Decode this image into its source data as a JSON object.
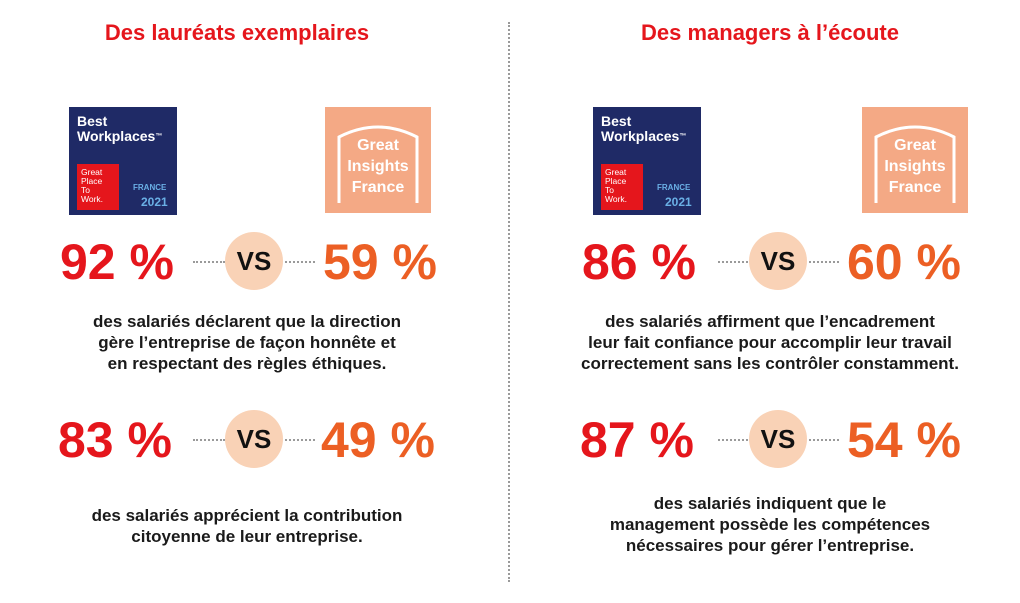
{
  "left": {
    "title": "Des lauréats exemplaires",
    "logo_bw": {
      "title_line1": "Best",
      "title_line2": "Workplaces",
      "tm": "™",
      "gptw_line1": "Great",
      "gptw_line2": "Place",
      "gptw_line3": "To",
      "gptw_line4": "Work.",
      "country": "FRANCE",
      "year": "2021"
    },
    "logo_gi": {
      "line1": "Great",
      "line2": "Insights",
      "line3": "France"
    },
    "stats": [
      {
        "value_a": "92 %",
        "vs": "VS",
        "value_b": "59 %",
        "description": [
          "des salariés déclarent que la direction",
          "gère l’entreprise de façon honnête et",
          "en respectant des règles éthiques."
        ]
      },
      {
        "value_a": "83 %",
        "vs": "VS",
        "value_b": "49 %",
        "description": [
          "des salariés apprécient la contribution",
          "citoyenne de leur entreprise."
        ]
      }
    ]
  },
  "right": {
    "title": "Des managers à l’écoute",
    "logo_bw": {
      "title_line1": "Best",
      "title_line2": "Workplaces",
      "tm": "™",
      "gptw_line1": "Great",
      "gptw_line2": "Place",
      "gptw_line3": "To",
      "gptw_line4": "Work.",
      "country": "FRANCE",
      "year": "2021"
    },
    "logo_gi": {
      "line1": "Great",
      "line2": "Insights",
      "line3": "France"
    },
    "stats": [
      {
        "value_a": "86 %",
        "vs": "VS",
        "value_b": "60 %",
        "description": [
          "des salariés affirment que l’encadrement",
          "leur fait confiance pour accomplir leur travail",
          "correctement sans les contrôler constamment."
        ]
      },
      {
        "value_a": "87 %",
        "vs": "VS",
        "value_b": "54 %",
        "description": [
          "des salariés indiquent que le",
          "management possède les compétences",
          "nécessaires pour gérer l’entreprise."
        ]
      }
    ]
  },
  "colors": {
    "title": "#e5161c",
    "value_a": "#e5161c",
    "value_b": "#ec5f24",
    "vs_bg": "#f9d2b6",
    "bw_bg": "#1f2a66",
    "gi_bg": "#f4a985"
  }
}
